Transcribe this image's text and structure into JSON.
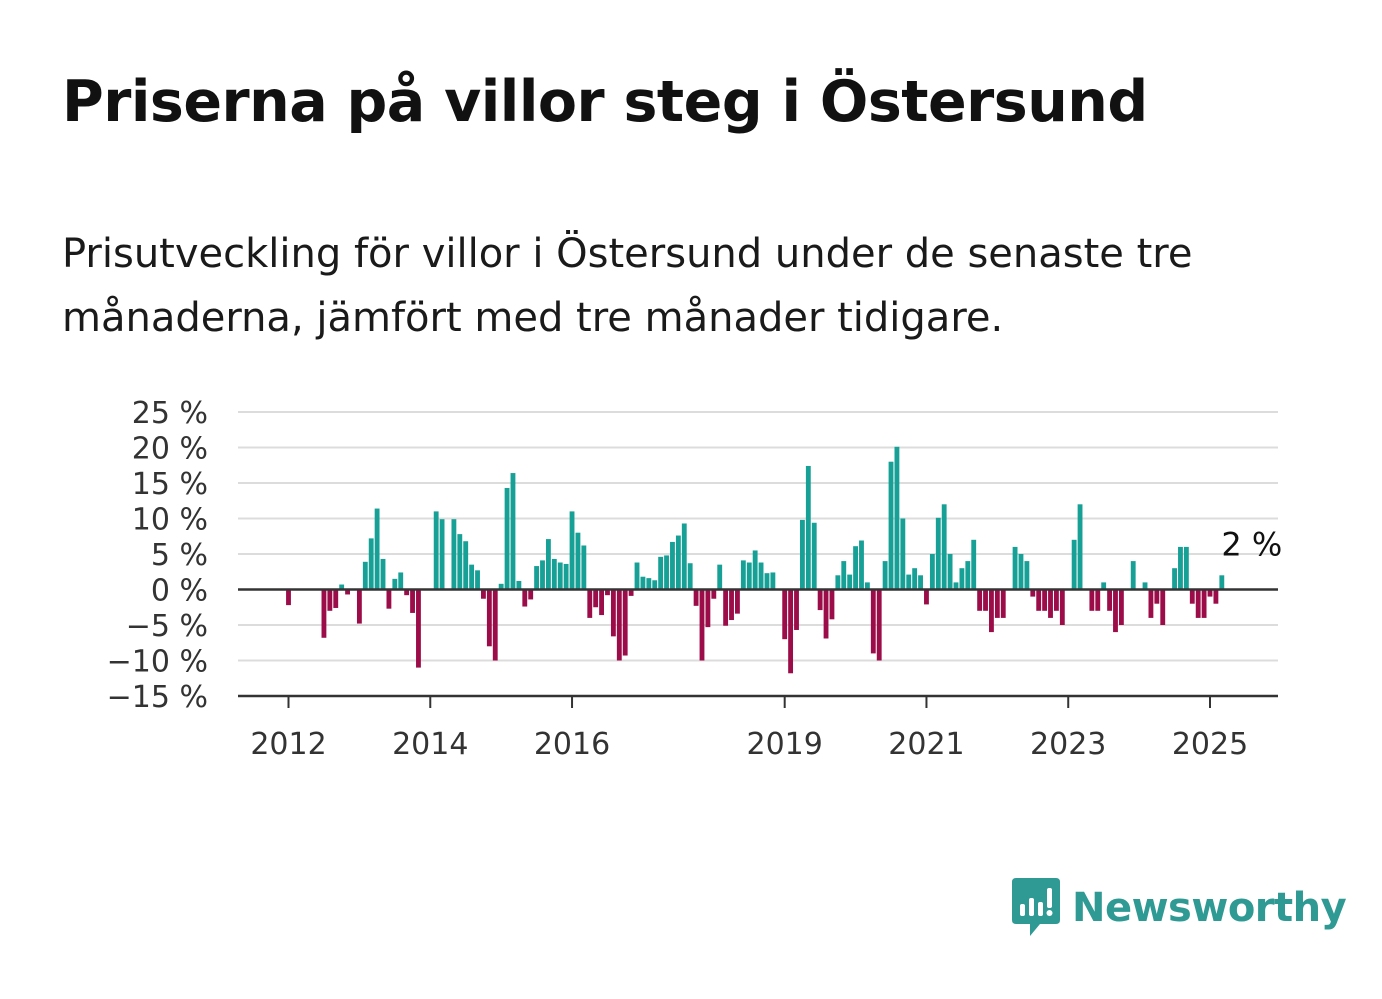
{
  "title": "Priserna på villor steg i Östersund",
  "subtitle": "Prisutveckling för villor i Östersund under de senaste tre månaderna, jämfört med tre månader tidigare.",
  "brand": "Newsworthy",
  "colors": {
    "positive": "#16a096",
    "negative": "#9b0c48",
    "grid": "#dcdcdc",
    "axis": "#333333",
    "brand": "#2f9a93"
  },
  "chart_data": {
    "type": "bar",
    "x_start": "2011-01",
    "x_end": "2025-12",
    "x_ticks": [
      {
        "date": "2012-01",
        "label": "2012"
      },
      {
        "date": "2014-01",
        "label": "2014"
      },
      {
        "date": "2016-01",
        "label": "2016"
      },
      {
        "date": "2019-01",
        "label": "2019"
      },
      {
        "date": "2021-01",
        "label": "2021"
      },
      {
        "date": "2023-01",
        "label": "2023"
      },
      {
        "date": "2025-01",
        "label": "2025"
      }
    ],
    "y_ticks": [
      {
        "value": 25,
        "label": "25 %"
      },
      {
        "value": 20,
        "label": "20 %"
      },
      {
        "value": 15,
        "label": "15 %"
      },
      {
        "value": 10,
        "label": "10 %"
      },
      {
        "value": 5,
        "label": "5 %"
      },
      {
        "value": 0,
        "label": "0 %"
      },
      {
        "value": -5,
        "label": "−5 %"
      },
      {
        "value": -10,
        "label": "−10 %"
      },
      {
        "value": -15,
        "label": "−15 %"
      }
    ],
    "ylim": [
      -15,
      25
    ],
    "grid": true,
    "annotation": {
      "date": "2025-03",
      "value": 2,
      "label": "2 %"
    },
    "points": [
      {
        "date": "2012-01",
        "value": -2.2
      },
      {
        "date": "2012-07",
        "value": -6.8
      },
      {
        "date": "2012-08",
        "value": -3.0
      },
      {
        "date": "2012-09",
        "value": -2.6
      },
      {
        "date": "2012-10",
        "value": 0.7
      },
      {
        "date": "2012-11",
        "value": -0.7
      },
      {
        "date": "2013-01",
        "value": -4.8
      },
      {
        "date": "2013-02",
        "value": 3.9
      },
      {
        "date": "2013-03",
        "value": 7.2
      },
      {
        "date": "2013-04",
        "value": 11.4
      },
      {
        "date": "2013-05",
        "value": 4.3
      },
      {
        "date": "2013-06",
        "value": -2.7
      },
      {
        "date": "2013-07",
        "value": 1.5
      },
      {
        "date": "2013-08",
        "value": 2.4
      },
      {
        "date": "2013-09",
        "value": -0.8
      },
      {
        "date": "2013-10",
        "value": -3.3
      },
      {
        "date": "2013-11",
        "value": -11.0
      },
      {
        "date": "2014-02",
        "value": 11.0
      },
      {
        "date": "2014-03",
        "value": 9.9
      },
      {
        "date": "2014-05",
        "value": 9.9
      },
      {
        "date": "2014-06",
        "value": 7.8
      },
      {
        "date": "2014-07",
        "value": 6.8
      },
      {
        "date": "2014-08",
        "value": 3.5
      },
      {
        "date": "2014-09",
        "value": 2.7
      },
      {
        "date": "2014-10",
        "value": -1.3
      },
      {
        "date": "2014-11",
        "value": -8.0
      },
      {
        "date": "2014-12",
        "value": -10.0
      },
      {
        "date": "2015-01",
        "value": 0.8
      },
      {
        "date": "2015-02",
        "value": 14.3
      },
      {
        "date": "2015-03",
        "value": 16.4
      },
      {
        "date": "2015-04",
        "value": 1.2
      },
      {
        "date": "2015-05",
        "value": -2.4
      },
      {
        "date": "2015-06",
        "value": -1.4
      },
      {
        "date": "2015-07",
        "value": 3.3
      },
      {
        "date": "2015-08",
        "value": 4.1
      },
      {
        "date": "2015-09",
        "value": 7.1
      },
      {
        "date": "2015-10",
        "value": 4.3
      },
      {
        "date": "2015-11",
        "value": 3.8
      },
      {
        "date": "2015-12",
        "value": 3.6
      },
      {
        "date": "2016-01",
        "value": 11.0
      },
      {
        "date": "2016-02",
        "value": 8.0
      },
      {
        "date": "2016-03",
        "value": 6.2
      },
      {
        "date": "2016-04",
        "value": -4.0
      },
      {
        "date": "2016-05",
        "value": -2.5
      },
      {
        "date": "2016-06",
        "value": -3.6
      },
      {
        "date": "2016-07",
        "value": -0.8
      },
      {
        "date": "2016-08",
        "value": -6.6
      },
      {
        "date": "2016-09",
        "value": -10.0
      },
      {
        "date": "2016-10",
        "value": -9.3
      },
      {
        "date": "2016-11",
        "value": -0.9
      },
      {
        "date": "2016-12",
        "value": 3.8
      },
      {
        "date": "2017-01",
        "value": 1.8
      },
      {
        "date": "2017-02",
        "value": 1.6
      },
      {
        "date": "2017-03",
        "value": 1.3
      },
      {
        "date": "2017-04",
        "value": 4.6
      },
      {
        "date": "2017-05",
        "value": 4.8
      },
      {
        "date": "2017-06",
        "value": 6.7
      },
      {
        "date": "2017-07",
        "value": 7.6
      },
      {
        "date": "2017-08",
        "value": 9.3
      },
      {
        "date": "2017-09",
        "value": 3.7
      },
      {
        "date": "2017-10",
        "value": -2.3
      },
      {
        "date": "2017-11",
        "value": -10.0
      },
      {
        "date": "2017-12",
        "value": -5.3
      },
      {
        "date": "2018-01",
        "value": -1.3
      },
      {
        "date": "2018-02",
        "value": 3.5
      },
      {
        "date": "2018-03",
        "value": -5.1
      },
      {
        "date": "2018-04",
        "value": -4.3
      },
      {
        "date": "2018-05",
        "value": -3.4
      },
      {
        "date": "2018-06",
        "value": 4.1
      },
      {
        "date": "2018-07",
        "value": 3.8
      },
      {
        "date": "2018-08",
        "value": 5.5
      },
      {
        "date": "2018-09",
        "value": 3.8
      },
      {
        "date": "2018-10",
        "value": 2.3
      },
      {
        "date": "2018-11",
        "value": 2.4
      },
      {
        "date": "2019-01",
        "value": -7.0
      },
      {
        "date": "2019-02",
        "value": -11.8
      },
      {
        "date": "2019-03",
        "value": -5.7
      },
      {
        "date": "2019-04",
        "value": 9.8
      },
      {
        "date": "2019-05",
        "value": 17.4
      },
      {
        "date": "2019-06",
        "value": 9.4
      },
      {
        "date": "2019-07",
        "value": -2.9
      },
      {
        "date": "2019-08",
        "value": -6.9
      },
      {
        "date": "2019-09",
        "value": -4.2
      },
      {
        "date": "2019-10",
        "value": 2.0
      },
      {
        "date": "2019-11",
        "value": 4.0
      },
      {
        "date": "2019-12",
        "value": 2.1
      },
      {
        "date": "2020-01",
        "value": 6.1
      },
      {
        "date": "2020-02",
        "value": 6.9
      },
      {
        "date": "2020-03",
        "value": 1.0
      },
      {
        "date": "2020-04",
        "value": -9.0
      },
      {
        "date": "2020-05",
        "value": -10.0
      },
      {
        "date": "2020-06",
        "value": 4.0
      },
      {
        "date": "2020-07",
        "value": 18.0
      },
      {
        "date": "2020-08",
        "value": 20.1
      },
      {
        "date": "2020-09",
        "value": 10.0
      },
      {
        "date": "2020-10",
        "value": 2.1
      },
      {
        "date": "2020-11",
        "value": 3.0
      },
      {
        "date": "2020-12",
        "value": 2.0
      },
      {
        "date": "2021-01",
        "value": -2.1
      },
      {
        "date": "2021-02",
        "value": 5.0
      },
      {
        "date": "2021-03",
        "value": 10.1
      },
      {
        "date": "2021-04",
        "value": 12.0
      },
      {
        "date": "2021-05",
        "value": 5.0
      },
      {
        "date": "2021-06",
        "value": 1.0
      },
      {
        "date": "2021-07",
        "value": 3.0
      },
      {
        "date": "2021-08",
        "value": 4.0
      },
      {
        "date": "2021-09",
        "value": 7.0
      },
      {
        "date": "2021-10",
        "value": -3.0
      },
      {
        "date": "2021-11",
        "value": -3.0
      },
      {
        "date": "2021-12",
        "value": -6.0
      },
      {
        "date": "2022-01",
        "value": -4.0
      },
      {
        "date": "2022-02",
        "value": -4.0
      },
      {
        "date": "2022-04",
        "value": 6.0
      },
      {
        "date": "2022-05",
        "value": 5.0
      },
      {
        "date": "2022-06",
        "value": 4.0
      },
      {
        "date": "2022-07",
        "value": -1.0
      },
      {
        "date": "2022-08",
        "value": -3.0
      },
      {
        "date": "2022-09",
        "value": -3.0
      },
      {
        "date": "2022-10",
        "value": -4.0
      },
      {
        "date": "2022-11",
        "value": -3.0
      },
      {
        "date": "2022-12",
        "value": -5.0
      },
      {
        "date": "2023-02",
        "value": 7.0
      },
      {
        "date": "2023-03",
        "value": 12.0
      },
      {
        "date": "2023-05",
        "value": -3.0
      },
      {
        "date": "2023-06",
        "value": -3.0
      },
      {
        "date": "2023-07",
        "value": 1.0
      },
      {
        "date": "2023-08",
        "value": -3.0
      },
      {
        "date": "2023-09",
        "value": -6.0
      },
      {
        "date": "2023-10",
        "value": -5.0
      },
      {
        "date": "2023-12",
        "value": 4.0
      },
      {
        "date": "2024-02",
        "value": 1.0
      },
      {
        "date": "2024-03",
        "value": -4.0
      },
      {
        "date": "2024-04",
        "value": -2.0
      },
      {
        "date": "2024-05",
        "value": -5.0
      },
      {
        "date": "2024-07",
        "value": 3.0
      },
      {
        "date": "2024-08",
        "value": 6.0
      },
      {
        "date": "2024-09",
        "value": 6.0
      },
      {
        "date": "2024-10",
        "value": -2.0
      },
      {
        "date": "2024-11",
        "value": -4.0
      },
      {
        "date": "2024-12",
        "value": -4.0
      },
      {
        "date": "2025-01",
        "value": -1.0
      },
      {
        "date": "2025-02",
        "value": -2.0
      },
      {
        "date": "2025-03",
        "value": 2.0
      }
    ]
  }
}
